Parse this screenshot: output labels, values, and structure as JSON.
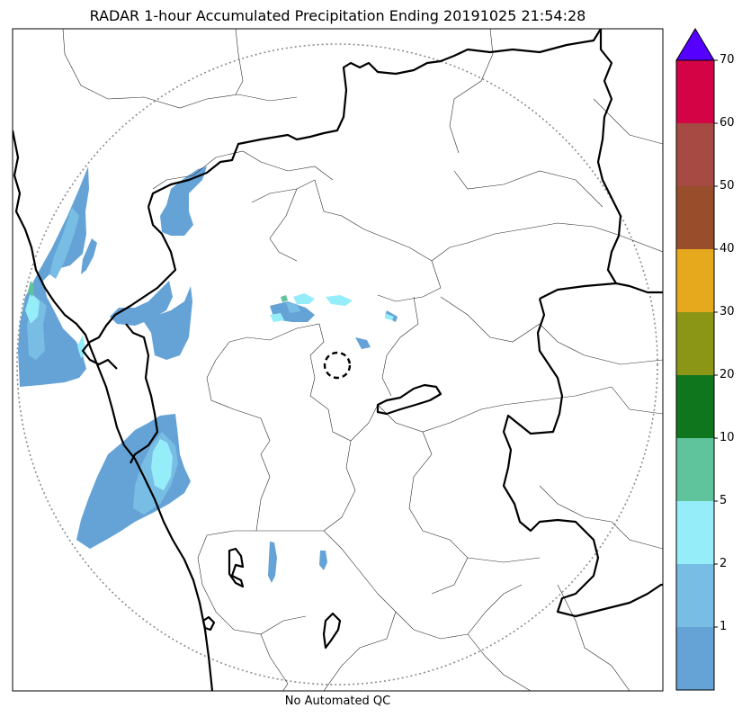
{
  "title": "RADAR 1-hour Accumulated Precipitation Ending 20191025 21:54:28",
  "footer": "No Automated QC",
  "colorbar": {
    "labels": [
      "1",
      "2",
      "5",
      "10",
      "20",
      "30",
      "40",
      "50",
      "60",
      "70"
    ],
    "bins": [
      {
        "min": 0,
        "max": 1,
        "color": "#65a3d6"
      },
      {
        "min": 1,
        "max": 2,
        "color": "#78bde3"
      },
      {
        "min": 2,
        "max": 5,
        "color": "#96edfa"
      },
      {
        "min": 5,
        "max": 10,
        "color": "#5fc39b"
      },
      {
        "min": 10,
        "max": 20,
        "color": "#0f761e"
      },
      {
        "min": 20,
        "max": 30,
        "color": "#8b9516"
      },
      {
        "min": 30,
        "max": 40,
        "color": "#e6a81d"
      },
      {
        "min": 40,
        "max": 50,
        "color": "#994e2b"
      },
      {
        "min": 50,
        "max": 60,
        "color": "#a64a44"
      },
      {
        "min": 60,
        "max": 70,
        "color": "#d40346"
      }
    ],
    "extend_color": "#5500ff"
  }
}
